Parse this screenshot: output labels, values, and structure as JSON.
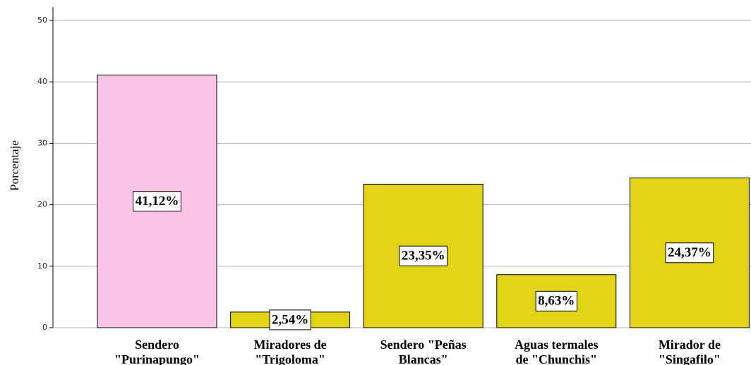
{
  "chart_data": {
    "type": "bar",
    "y_label": "Porcentaje",
    "categories": [
      "Sendero\n\"Purinapungo\"",
      "Miradores de\n\"Trigoloma\"",
      "Sendero \"Peñas\nBlancas\"",
      "Aguas termales\nde \"Chunchis\"",
      "Mirador de\n\"Singafilo\""
    ],
    "values": [
      41.12,
      2.54,
      23.35,
      8.63,
      24.37
    ],
    "value_labels": [
      "41,12%",
      "2,54%",
      "23,35%",
      "8,63%",
      "24,37%"
    ],
    "colors": [
      "#fcc4e4",
      "#e0d414",
      "#e0d414",
      "#e0d414",
      "#e0d414"
    ],
    "ylim": [
      0,
      50
    ],
    "yticks": [
      0,
      10,
      20,
      30,
      40,
      50
    ],
    "grid": true
  }
}
